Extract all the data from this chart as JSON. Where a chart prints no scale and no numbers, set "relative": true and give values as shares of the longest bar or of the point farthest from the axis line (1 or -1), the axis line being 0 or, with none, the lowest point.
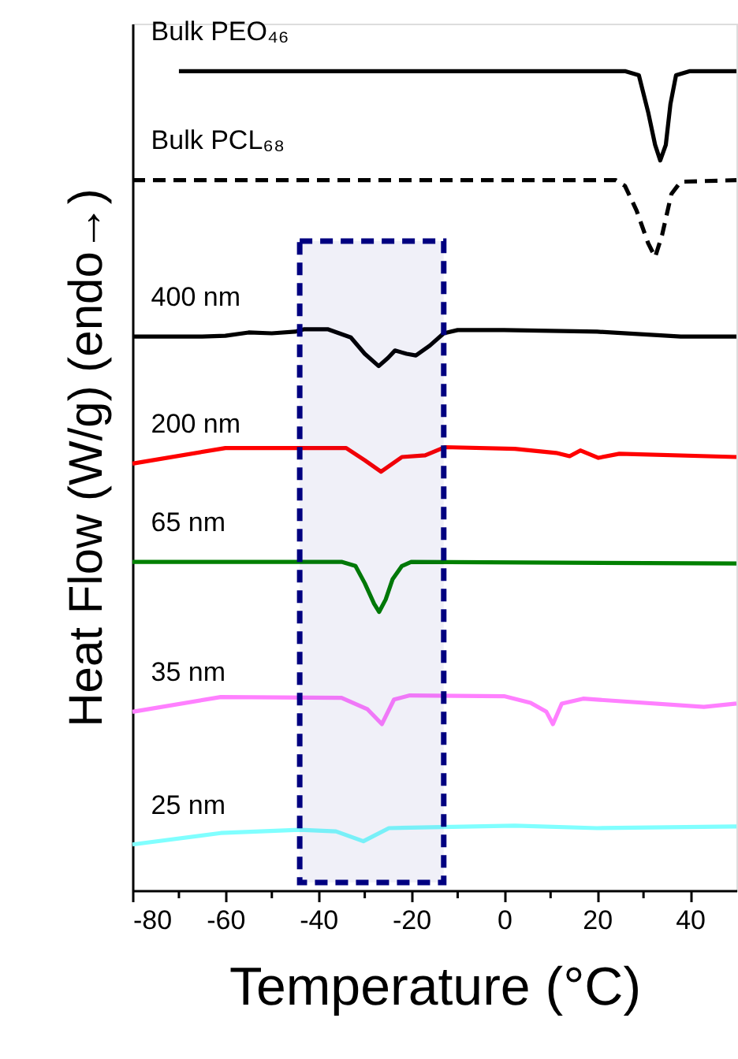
{
  "chart_data": {
    "type": "line",
    "relative": true,
    "xlabel": "Temperature (°C)",
    "ylabel": "Heat Flow (W/g) (endo→)",
    "xlim": [
      -80,
      50
    ],
    "xticks": [
      -80,
      {
        "value": -70,
        "label": null
      },
      -60,
      {
        "value": -50,
        "label": null
      },
      -40,
      {
        "value": -30,
        "label": null
      },
      -20,
      {
        "value": -10,
        "label": null
      },
      0,
      {
        "value": 10,
        "label": null
      },
      20,
      {
        "value": 30,
        "label": null
      },
      40
    ],
    "grid": false,
    "bands": [
      {
        "axis": "x",
        "from": -44,
        "to": -13,
        "color": "#000080"
      }
    ],
    "series": [
      {
        "name": "Bulk PEO₄₆",
        "color": "#000000",
        "line_style": "solid",
        "x": [
          -70,
          26,
          29,
          31,
          32.5,
          33.6,
          34.8,
          35.8,
          37,
          40,
          50
        ],
        "values": [
          1,
          1,
          0.995,
          0.95,
          0.91,
          0.891,
          0.91,
          0.96,
          0.995,
          1,
          1
        ]
      },
      {
        "name": "Bulk PCL₆₈",
        "color": "#000000",
        "line_style": "dashed",
        "x": [
          -80,
          24,
          26,
          28.5,
          31,
          32.5,
          34,
          36,
          38,
          50
        ],
        "values": [
          0.867,
          0.867,
          0.86,
          0.83,
          0.79,
          0.773,
          0.8,
          0.85,
          0.865,
          0.867
        ]
      },
      {
        "name": "400 nm",
        "color": "#000000",
        "line_style": "solid",
        "x": [
          -80,
          -65,
          -60,
          -55,
          -50,
          -45,
          -43,
          -38,
          -33,
          -30,
          -27,
          -25,
          -23.5,
          -21,
          -19,
          -16,
          -13,
          -10,
          0,
          20,
          38,
          50
        ],
        "values": [
          0.676,
          0.676,
          0.677,
          0.681,
          0.68,
          0.682,
          0.685,
          0.685,
          0.675,
          0.655,
          0.64,
          0.65,
          0.659,
          0.655,
          0.653,
          0.665,
          0.68,
          0.684,
          0.684,
          0.682,
          0.676,
          0.676
        ]
      },
      {
        "name": "200 nm",
        "color": "#ff0000",
        "line_style": "solid",
        "x": [
          -80,
          -60,
          -34,
          -30,
          -26.5,
          -22,
          -17,
          -12.8,
          2.3,
          11.2,
          14.1,
          16.4,
          20.3,
          24.8,
          50
        ],
        "values": [
          0.521,
          0.54,
          0.54,
          0.525,
          0.511,
          0.529,
          0.531,
          0.541,
          0.539,
          0.534,
          0.53,
          0.537,
          0.528,
          0.533,
          0.529
        ]
      },
      {
        "name": "65 nm",
        "color": "#008000",
        "line_style": "solid",
        "x": [
          -80,
          -35,
          -32,
          -30,
          -28,
          -26.9,
          -25.5,
          -24,
          -22,
          -20,
          50
        ],
        "values": [
          0.401,
          0.401,
          0.396,
          0.375,
          0.35,
          0.34,
          0.355,
          0.38,
          0.396,
          0.401,
          0.399
        ]
      },
      {
        "name": "35 nm",
        "color": "#ff80ff",
        "line_style": "solid",
        "x": [
          -80,
          -61,
          -35,
          -29.4,
          -26.3,
          -23.7,
          -20.3,
          0,
          5.7,
          9.1,
          10.5,
          12.4,
          17,
          43,
          50
        ],
        "values": [
          0.218,
          0.236,
          0.235,
          0.221,
          0.203,
          0.233,
          0.238,
          0.237,
          0.229,
          0.218,
          0.203,
          0.228,
          0.234,
          0.224,
          0.228
        ]
      },
      {
        "name": "25 nm",
        "color": "#80ffff",
        "line_style": "solid",
        "x": [
          -80,
          -61,
          -44,
          -36.2,
          -30.3,
          -24.8,
          2.3,
          20,
          50
        ],
        "values": [
          0.056,
          0.07,
          0.074,
          0.072,
          0.06,
          0.076,
          0.079,
          0.076,
          0.078
        ]
      }
    ]
  }
}
